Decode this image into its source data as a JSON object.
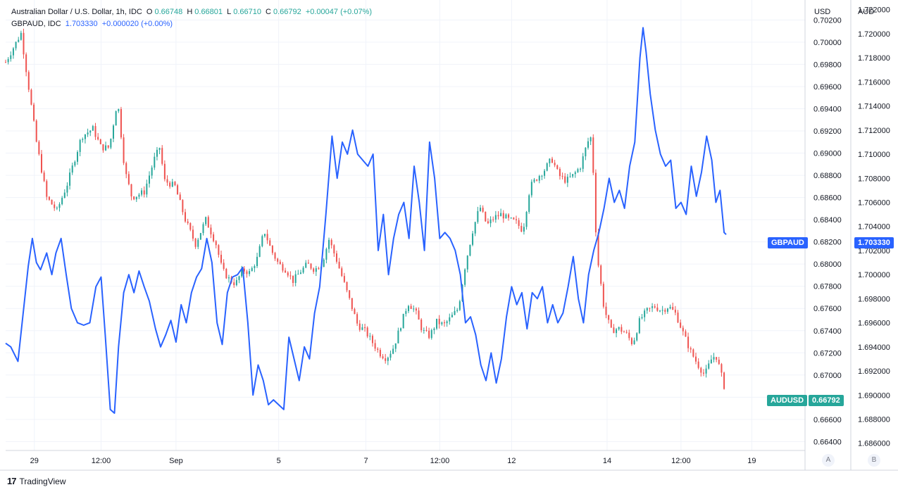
{
  "legend": {
    "main_name": "Australian Dollar / U.S. Dollar, 1h, IDC",
    "o_key": "O",
    "o_val": "0.66748",
    "h_key": "H",
    "h_val": "0.66801",
    "l_key": "L",
    "l_val": "0.66710",
    "c_key": "C",
    "c_val": "0.66792",
    "change": "+0.00047 (+0.07%)",
    "second_name": "GBPAUD, IDC",
    "second_val": "1.703330",
    "second_change": "+0.000020 (+0.00%)"
  },
  "price_tags": {
    "gbpaud_label": "GBPAUD",
    "gbpaud_value": "1.703330",
    "audusd_label": "AUDUSD",
    "audusd_value": "0.66792"
  },
  "scale_buttons": {
    "a": "A",
    "b": "B"
  },
  "footer": {
    "brand": "TradingView",
    "logo": "17"
  },
  "colors": {
    "up": "#26a69a",
    "down": "#ef5350",
    "line": "#2962ff",
    "grid": "#f0f3fa"
  },
  "chart_data": [
    {
      "type": "candlestick",
      "title": "Australian Dollar / U.S. Dollar, 1h, IDC",
      "series_name": "AUDUSD",
      "axis_title": "USD",
      "ylim": [
        0.6632,
        0.7038
      ],
      "yticks": [
        "0.70200",
        "0.70000",
        "0.69800",
        "0.69600",
        "0.69400",
        "0.69200",
        "0.69000",
        "0.68800",
        "0.68600",
        "0.68400",
        "0.68200",
        "0.68000",
        "0.67800",
        "0.67600",
        "0.67400",
        "0.67200",
        "0.67000",
        "0.66800",
        "0.66600",
        "0.66400"
      ],
      "x_labels": [
        "29",
        "12:00",
        "Sep",
        "5",
        "7",
        "12:00",
        "12",
        "14",
        "12:00",
        "19"
      ],
      "close_path": [
        [
          0,
          0.6982
        ],
        [
          1.5,
          0.7008
        ],
        [
          3,
          0.691
        ],
        [
          4,
          0.686
        ],
        [
          5,
          0.6848
        ],
        [
          6,
          0.6872
        ],
        [
          7.4,
          0.6915
        ],
        [
          8.5,
          0.6922
        ],
        [
          9.3,
          0.6905
        ],
        [
          10.1,
          0.6905
        ],
        [
          10.9,
          0.6948
        ],
        [
          11.6,
          0.6885
        ],
        [
          12.3,
          0.686
        ],
        [
          13.5,
          0.6865
        ],
        [
          14.5,
          0.6895
        ],
        [
          15,
          0.6905
        ],
        [
          15.5,
          0.6875
        ],
        [
          16.5,
          0.687
        ],
        [
          17.5,
          0.684
        ],
        [
          18.5,
          0.6818
        ],
        [
          19.5,
          0.684
        ],
        [
          20.5,
          0.6818
        ],
        [
          21.1,
          0.6795
        ],
        [
          21.7,
          0.6787
        ],
        [
          22.4,
          0.6782
        ],
        [
          23.1,
          0.6795
        ],
        [
          23.8,
          0.6792
        ],
        [
          24.5,
          0.6805
        ],
        [
          25.2,
          0.683
        ],
        [
          25.9,
          0.6812
        ],
        [
          26.6,
          0.68
        ],
        [
          27.3,
          0.6795
        ],
        [
          28.0,
          0.6785
        ],
        [
          28.7,
          0.6793
        ],
        [
          29.4,
          0.68
        ],
        [
          30.1,
          0.6795
        ],
        [
          30.8,
          0.68
        ],
        [
          31.5,
          0.6822
        ],
        [
          32.2,
          0.6805
        ],
        [
          32.9,
          0.6785
        ],
        [
          33.6,
          0.6765
        ],
        [
          34.3,
          0.6745
        ],
        [
          35.0,
          0.674
        ],
        [
          35.7,
          0.673
        ],
        [
          36.4,
          0.672
        ],
        [
          37.1,
          0.6715
        ],
        [
          37.8,
          0.6725
        ],
        [
          38.5,
          0.6745
        ],
        [
          39.2,
          0.6765
        ],
        [
          39.9,
          0.6758
        ],
        [
          40.6,
          0.674
        ],
        [
          41.3,
          0.6735
        ],
        [
          42.0,
          0.6748
        ],
        [
          42.7,
          0.6745
        ],
        [
          43.4,
          0.6752
        ],
        [
          44.1,
          0.676
        ],
        [
          44.8,
          0.68
        ],
        [
          45.5,
          0.683
        ],
        [
          46.2,
          0.6852
        ],
        [
          46.9,
          0.6835
        ],
        [
          47.6,
          0.6842
        ],
        [
          48.3,
          0.6845
        ],
        [
          49.0,
          0.684
        ],
        [
          49.7,
          0.6838
        ],
        [
          50.4,
          0.683
        ],
        [
          51.1,
          0.687
        ],
        [
          51.8,
          0.6878
        ],
        [
          52.5,
          0.6885
        ],
        [
          53.2,
          0.6895
        ],
        [
          53.9,
          0.688
        ],
        [
          54.6,
          0.6875
        ],
        [
          55.3,
          0.688
        ],
        [
          56.0,
          0.6888
        ],
        [
          56.7,
          0.691
        ],
        [
          57.1,
          0.6915
        ],
        [
          57.6,
          0.681
        ],
        [
          58.3,
          0.676
        ],
        [
          59.0,
          0.674
        ],
        [
          59.7,
          0.6742
        ],
        [
          60.4,
          0.6738
        ],
        [
          61.1,
          0.6728
        ],
        [
          61.8,
          0.675
        ],
        [
          62.5,
          0.6758
        ],
        [
          63.2,
          0.6762
        ],
        [
          63.9,
          0.6758
        ],
        [
          64.6,
          0.6762
        ],
        [
          65.3,
          0.6755
        ],
        [
          66.0,
          0.6738
        ],
        [
          66.7,
          0.6722
        ],
        [
          67.4,
          0.671
        ],
        [
          68.1,
          0.67
        ],
        [
          68.8,
          0.6715
        ],
        [
          69.2,
          0.6718
        ],
        [
          69.6,
          0.6705
        ],
        [
          70.0,
          0.669
        ],
        [
          70.2,
          0.6679
        ]
      ],
      "note_x_units": "hours since the 29 label (0 = first candle)"
    },
    {
      "type": "line",
      "title": "GBPAUD, IDC",
      "series_name": "GBPAUD",
      "axis_title": "AUD",
      "last_value": 1.70333,
      "ylim": [
        1.6854,
        1.7228
      ],
      "yticks": [
        "1.722000",
        "1.720000",
        "1.718000",
        "1.716000",
        "1.714000",
        "1.712000",
        "1.710000",
        "1.708000",
        "1.706000",
        "1.704000",
        "1.702000",
        "1.700000",
        "1.698000",
        "1.696000",
        "1.694000",
        "1.692000",
        "1.690000",
        "1.688000",
        "1.686000"
      ],
      "path": [
        [
          0,
          1.6943
        ],
        [
          0.5,
          1.694
        ],
        [
          1.2,
          1.6928
        ],
        [
          2.2,
          1.7007
        ],
        [
          2.6,
          1.703
        ],
        [
          3.0,
          1.701
        ],
        [
          3.4,
          1.7004
        ],
        [
          4.0,
          1.7018
        ],
        [
          4.5,
          1.7
        ],
        [
          4.9,
          1.7018
        ],
        [
          5.4,
          1.703
        ],
        [
          5.9,
          1.7
        ],
        [
          6.4,
          1.6972
        ],
        [
          7.0,
          1.696
        ],
        [
          7.6,
          1.6958
        ],
        [
          8.2,
          1.696
        ],
        [
          8.8,
          1.699
        ],
        [
          9.3,
          1.6998
        ],
        [
          9.7,
          1.695
        ],
        [
          10.2,
          1.6888
        ],
        [
          10.6,
          1.6885
        ],
        [
          11.0,
          1.694
        ],
        [
          11.5,
          1.6985
        ],
        [
          12.0,
          1.7
        ],
        [
          12.5,
          1.6985
        ],
        [
          13.0,
          1.7003
        ],
        [
          13.5,
          1.699
        ],
        [
          14.0,
          1.6978
        ],
        [
          14.6,
          1.6955
        ],
        [
          15.1,
          1.694
        ],
        [
          15.6,
          1.695
        ],
        [
          16.1,
          1.6962
        ],
        [
          16.6,
          1.6944
        ],
        [
          17.1,
          1.6975
        ],
        [
          17.6,
          1.696
        ],
        [
          18.1,
          1.6985
        ],
        [
          18.6,
          1.6998
        ],
        [
          19.1,
          1.7005
        ],
        [
          19.6,
          1.703
        ],
        [
          20.1,
          1.701
        ],
        [
          20.6,
          1.696
        ],
        [
          21.1,
          1.6942
        ],
        [
          21.6,
          1.6985
        ],
        [
          22.1,
          1.6998
        ],
        [
          22.6,
          1.7
        ],
        [
          23.1,
          1.7006
        ],
        [
          23.6,
          1.696
        ],
        [
          24.1,
          1.69
        ],
        [
          24.6,
          1.6925
        ],
        [
          25.1,
          1.6912
        ],
        [
          25.6,
          1.6892
        ],
        [
          26.1,
          1.6896
        ],
        [
          26.6,
          1.6892
        ],
        [
          27.1,
          1.6888
        ],
        [
          27.6,
          1.6948
        ],
        [
          28.1,
          1.693
        ],
        [
          28.6,
          1.6912
        ],
        [
          29.1,
          1.694
        ],
        [
          29.6,
          1.693
        ],
        [
          30.1,
          1.6968
        ],
        [
          30.6,
          1.699
        ],
        [
          31.2,
          1.705
        ],
        [
          31.8,
          1.7115
        ],
        [
          32.3,
          1.708
        ],
        [
          32.8,
          1.711
        ],
        [
          33.3,
          1.71
        ],
        [
          33.8,
          1.712
        ],
        [
          34.3,
          1.71
        ],
        [
          34.8,
          1.7095
        ],
        [
          35.3,
          1.709
        ],
        [
          35.8,
          1.71
        ],
        [
          36.3,
          1.702
        ],
        [
          36.8,
          1.705
        ],
        [
          37.3,
          1.7
        ],
        [
          37.8,
          1.703
        ],
        [
          38.3,
          1.705
        ],
        [
          38.8,
          1.706
        ],
        [
          39.3,
          1.703
        ],
        [
          39.8,
          1.709
        ],
        [
          40.3,
          1.706
        ],
        [
          40.8,
          1.702
        ],
        [
          41.3,
          1.711
        ],
        [
          41.8,
          1.708
        ],
        [
          42.3,
          1.703
        ],
        [
          42.8,
          1.7035
        ],
        [
          43.3,
          1.703
        ],
        [
          43.8,
          1.702
        ],
        [
          44.3,
          1.7
        ],
        [
          44.8,
          1.696
        ],
        [
          45.3,
          1.6965
        ],
        [
          45.8,
          1.695
        ],
        [
          46.3,
          1.6925
        ],
        [
          46.8,
          1.6912
        ],
        [
          47.3,
          1.6935
        ],
        [
          47.8,
          1.691
        ],
        [
          48.3,
          1.693
        ],
        [
          48.8,
          1.6965
        ],
        [
          49.3,
          1.699
        ],
        [
          49.8,
          1.6975
        ],
        [
          50.3,
          1.6985
        ],
        [
          50.8,
          1.6955
        ],
        [
          51.3,
          1.6985
        ],
        [
          51.8,
          1.698
        ],
        [
          52.3,
          1.699
        ],
        [
          52.8,
          1.696
        ],
        [
          53.3,
          1.6975
        ],
        [
          53.8,
          1.696
        ],
        [
          54.3,
          1.6968
        ],
        [
          54.8,
          1.699
        ],
        [
          55.3,
          1.7015
        ],
        [
          55.8,
          1.698
        ],
        [
          56.3,
          1.696
        ],
        [
          56.8,
          1.7
        ],
        [
          57.3,
          1.702
        ],
        [
          57.8,
          1.7035
        ],
        [
          58.3,
          1.7055
        ],
        [
          58.8,
          1.708
        ],
        [
          59.3,
          1.706
        ],
        [
          59.8,
          1.707
        ],
        [
          60.3,
          1.7055
        ],
        [
          60.8,
          1.709
        ],
        [
          61.3,
          1.711
        ],
        [
          61.8,
          1.718
        ],
        [
          62.1,
          1.7205
        ],
        [
          62.4,
          1.7185
        ],
        [
          62.8,
          1.715
        ],
        [
          63.3,
          1.712
        ],
        [
          63.8,
          1.71
        ],
        [
          64.3,
          1.709
        ],
        [
          64.8,
          1.7095
        ],
        [
          65.3,
          1.7055
        ],
        [
          65.8,
          1.706
        ],
        [
          66.3,
          1.705
        ],
        [
          66.8,
          1.709
        ],
        [
          67.3,
          1.7065
        ],
        [
          67.8,
          1.7085
        ],
        [
          68.3,
          1.7115
        ],
        [
          68.8,
          1.7095
        ],
        [
          69.2,
          1.706
        ],
        [
          69.6,
          1.707
        ],
        [
          70.0,
          1.7035
        ],
        [
          70.2,
          1.70333
        ]
      ]
    }
  ]
}
